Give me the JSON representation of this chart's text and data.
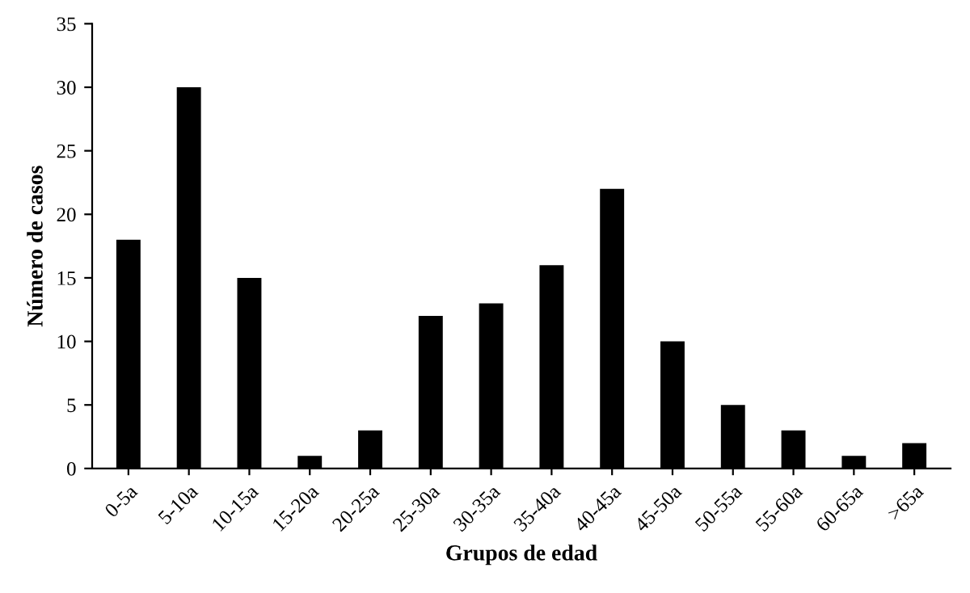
{
  "chart_data": {
    "type": "bar",
    "xlabel": "Grupos de edad",
    "ylabel": "Número de casos",
    "categories": [
      "0-5a",
      "5-10a",
      "10-15a",
      "15-20a",
      "20-25a",
      "25-30a",
      "30-35a",
      "35-40a",
      "40-45a",
      "45-50a",
      "50-55a",
      "55-60a",
      "60-65a",
      ">65a"
    ],
    "values": [
      18,
      30,
      15,
      1,
      3,
      12,
      13,
      16,
      22,
      10,
      5,
      3,
      1,
      2
    ],
    "color": "#000000",
    "ylim": [
      0,
      35
    ],
    "yticks": [
      0,
      5,
      10,
      15,
      20,
      25,
      30,
      35
    ],
    "grid": false,
    "legend": false
  }
}
